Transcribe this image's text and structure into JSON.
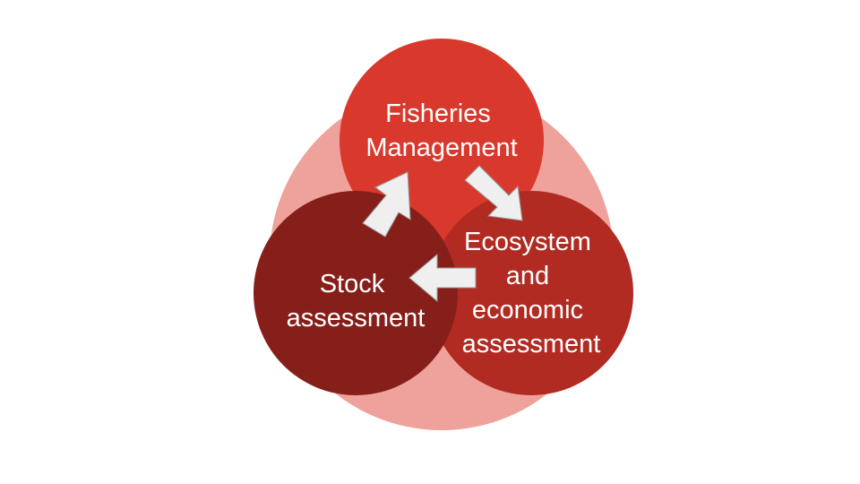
{
  "diagram": {
    "colors": {
      "background_ring": "#eea29b",
      "fisheries_management": "#d9382c",
      "ecosystem_economic": "#b12b23",
      "stock_assessment": "#861f19",
      "arrow_fill": "#efefef",
      "arrow_stroke": "#9a9a9a",
      "label_text": "#ffffff"
    },
    "nodes": {
      "fisheries_management": {
        "line1": "Fisheries",
        "line2": "Management"
      },
      "ecosystem_economic": {
        "line1": "Ecosystem",
        "line2": "and",
        "line3": "economic",
        "line4": "assessment"
      },
      "stock_assessment": {
        "line1": "Stock",
        "line2": "assessment"
      }
    },
    "cycle": [
      "fisheries_management",
      "ecosystem_economic",
      "stock_assessment"
    ]
  }
}
